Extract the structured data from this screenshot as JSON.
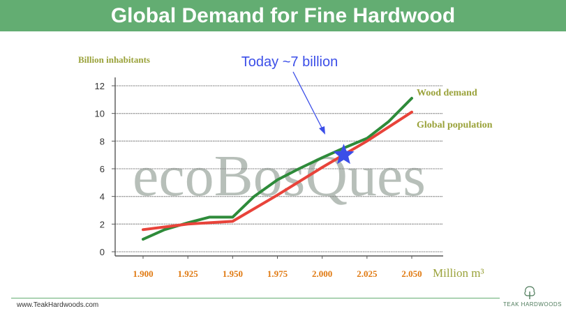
{
  "slide": {
    "title": "Global Demand for Fine Hardwood",
    "footer_url": "www.TeakHardwoods.com",
    "logo_text": "TEAK HARDWOODS",
    "watermark": "ecoBosQues"
  },
  "colors": {
    "title_bar": "#63ad72",
    "wood_demand": "#2e8b3a",
    "global_population": "#e8433a",
    "axis_text": "#e07a12",
    "label_olive": "#9aa23a",
    "annotation": "#3b4ee8",
    "grid": "#888888"
  },
  "chart_data": {
    "type": "line",
    "ylabel": "Billion inhabitants",
    "xlabel": "Million m³",
    "y_ticks": [
      "0",
      "2",
      "4",
      "6",
      "8",
      "10",
      "12"
    ],
    "ylim": [
      0,
      12
    ],
    "x_ticks": [
      "1.900",
      "1.925",
      "1.950",
      "1.975",
      "2.000",
      "2.025",
      "2.050"
    ],
    "xlim": [
      1890,
      2060
    ],
    "grid": true,
    "annotation": {
      "text": "Today ~7 billion",
      "x": 2012,
      "y": 7.0
    },
    "series": [
      {
        "name": "Wood demand",
        "color_key": "wood_demand",
        "points": [
          [
            1900,
            0.9
          ],
          [
            1912,
            1.6
          ],
          [
            1925,
            2.1
          ],
          [
            1937,
            2.5
          ],
          [
            1950,
            2.5
          ],
          [
            1962,
            4.0
          ],
          [
            1975,
            5.2
          ],
          [
            1987,
            6.0
          ],
          [
            2000,
            6.8
          ],
          [
            2012,
            7.5
          ],
          [
            2025,
            8.2
          ],
          [
            2037,
            9.4
          ],
          [
            2050,
            11.1
          ]
        ]
      },
      {
        "name": "Global population",
        "color_key": "global_population",
        "points": [
          [
            1900,
            1.6
          ],
          [
            1925,
            2.0
          ],
          [
            1950,
            2.2
          ],
          [
            1975,
            4.1
          ],
          [
            2000,
            6.1
          ],
          [
            2025,
            8.0
          ],
          [
            2050,
            10.1
          ]
        ]
      }
    ]
  }
}
